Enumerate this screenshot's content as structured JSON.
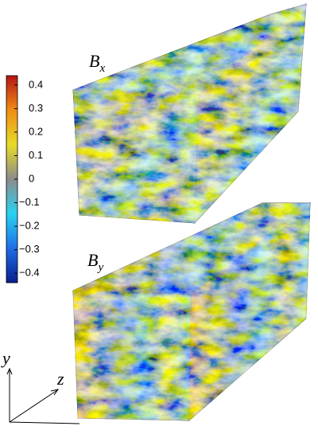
{
  "colorbar": {
    "lim": [
      -0.44,
      0.44
    ],
    "ticks": [
      0.4,
      0.3,
      0.2,
      0.1,
      0,
      {
        "value": -0.1,
        "label": "−0.1"
      },
      {
        "value": -0.2,
        "label": "−0.2"
      },
      {
        "value": -0.3,
        "label": "−0.3"
      },
      {
        "value": -0.4,
        "label": "−0.4"
      }
    ],
    "colors": [
      "#0a1e8c",
      "#1e6ee6",
      "#28d2f0",
      "#8c8c8c",
      "#e6dc28",
      "#f08c14",
      "#b41414"
    ]
  },
  "panels": [
    {
      "symbol": "B",
      "subscript": "x"
    },
    {
      "symbol": "B",
      "subscript": "y"
    }
  ],
  "axes": {
    "vertical": "y",
    "depth": "z"
  }
}
